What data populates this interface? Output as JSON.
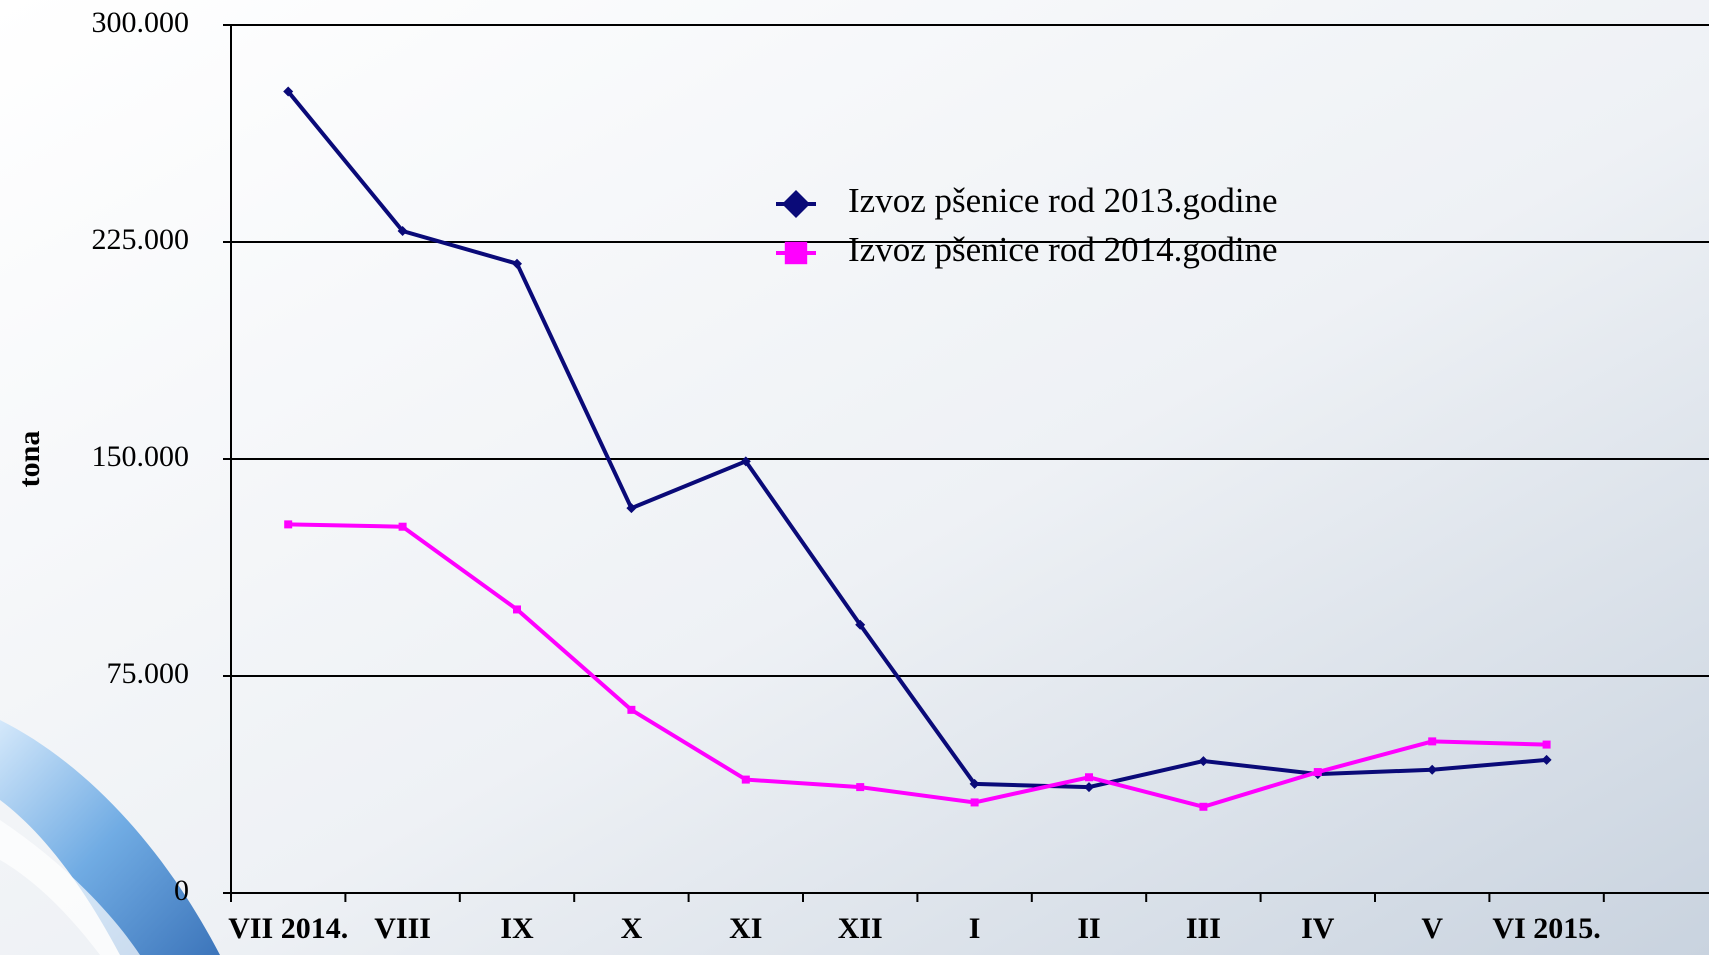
{
  "chart_data": {
    "type": "line",
    "y_label": "tona",
    "categories": [
      "VII 2014.",
      "VIII",
      "IX",
      "X",
      "XI",
      "XII",
      "I",
      "II",
      "III",
      "IV",
      "V",
      "VI 2015.",
      null
    ],
    "series": [
      {
        "name": "Izvoz pšenice rod 2013.godine",
        "color": "#0a0a78",
        "marker": "diamond",
        "values": [
          277000,
          228800,
          217500,
          133000,
          149200,
          92700,
          37700,
          36600,
          45600,
          41100,
          42600,
          46000,
          null
        ]
      },
      {
        "name": "Izvoz pšenice rod 2014.godine",
        "color": "#ff00ff",
        "marker": "square",
        "values": [
          127400,
          126600,
          98000,
          63300,
          39200,
          36600,
          31300,
          40000,
          29800,
          41800,
          52400,
          51300,
          null
        ]
      }
    ],
    "ylim": [
      0,
      300000
    ],
    "yticks": [
      0,
      {
        "value": 75000,
        "label": "75.000"
      },
      {
        "value": 150000,
        "label": "150.000"
      },
      {
        "value": 225000,
        "label": "225.000"
      },
      {
        "value": 300000,
        "label": "300.000"
      }
    ],
    "grid": true,
    "legend": "top-right"
  }
}
